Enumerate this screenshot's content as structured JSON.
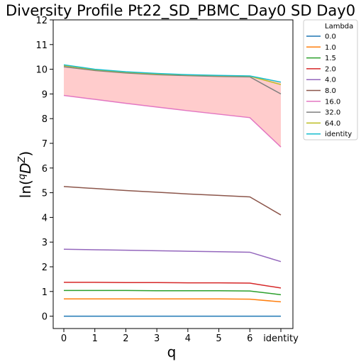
{
  "chart_data": {
    "type": "line",
    "title": "Diversity Profile Pt22_SD_PBMC_Day0 SD Day0",
    "xlabel": "q",
    "ylabel_base": "ln(",
    "ylabel_sup1": "q",
    "ylabel_mid": "D",
    "ylabel_sup2": "Z",
    "ylabel_end": ")",
    "x_tick_labels": [
      "0",
      "1",
      "2",
      "3",
      "4",
      "5",
      "6",
      "identity"
    ],
    "x": [
      0,
      1,
      2,
      3,
      4,
      5,
      6,
      7
    ],
    "ylim": [
      -0.5,
      12
    ],
    "y_ticks": [
      "0",
      "1",
      "2",
      "3",
      "4",
      "5",
      "6",
      "7",
      "8",
      "9",
      "10",
      "11",
      "12"
    ],
    "grid": false,
    "legend": {
      "title": "Lambda",
      "placement": "outside-top-right"
    },
    "fill_between": {
      "lower_series": "16.0",
      "upper_series": "identity",
      "color": "#ffcccc"
    },
    "series": [
      {
        "name": "0.0",
        "color": "#1f77b4",
        "values": [
          0.0,
          0.0,
          0.0,
          0.0,
          0.0,
          0.0,
          0.0,
          0.0
        ]
      },
      {
        "name": "1.0",
        "color": "#ff7f0e",
        "values": [
          0.7,
          0.7,
          0.7,
          0.7,
          0.7,
          0.7,
          0.69,
          0.58
        ]
      },
      {
        "name": "1.5",
        "color": "#2ca02c",
        "values": [
          1.04,
          1.04,
          1.04,
          1.03,
          1.03,
          1.03,
          1.02,
          0.87
        ]
      },
      {
        "name": "2.0",
        "color": "#d62728",
        "values": [
          1.37,
          1.37,
          1.36,
          1.36,
          1.35,
          1.35,
          1.34,
          1.14
        ]
      },
      {
        "name": "4.0",
        "color": "#9467bd",
        "values": [
          2.71,
          2.69,
          2.67,
          2.65,
          2.63,
          2.61,
          2.59,
          2.21
        ]
      },
      {
        "name": "8.0",
        "color": "#8c564b",
        "values": [
          5.25,
          5.17,
          5.09,
          5.02,
          4.95,
          4.89,
          4.83,
          4.1
        ]
      },
      {
        "name": "16.0",
        "color": "#e377c2",
        "values": [
          8.94,
          8.78,
          8.62,
          8.47,
          8.32,
          8.18,
          8.04,
          6.85
        ]
      },
      {
        "name": "32.0",
        "color": "#7f7f7f",
        "values": [
          10.1,
          9.95,
          9.85,
          9.78,
          9.74,
          9.71,
          9.69,
          9.0
        ]
      },
      {
        "name": "64.0",
        "color": "#bcbd22",
        "values": [
          10.15,
          9.98,
          9.88,
          9.81,
          9.77,
          9.74,
          9.72,
          9.38
        ]
      },
      {
        "name": "identity",
        "color": "#17becf",
        "values": [
          10.18,
          10.0,
          9.9,
          9.83,
          9.78,
          9.75,
          9.73,
          9.48
        ]
      }
    ]
  }
}
